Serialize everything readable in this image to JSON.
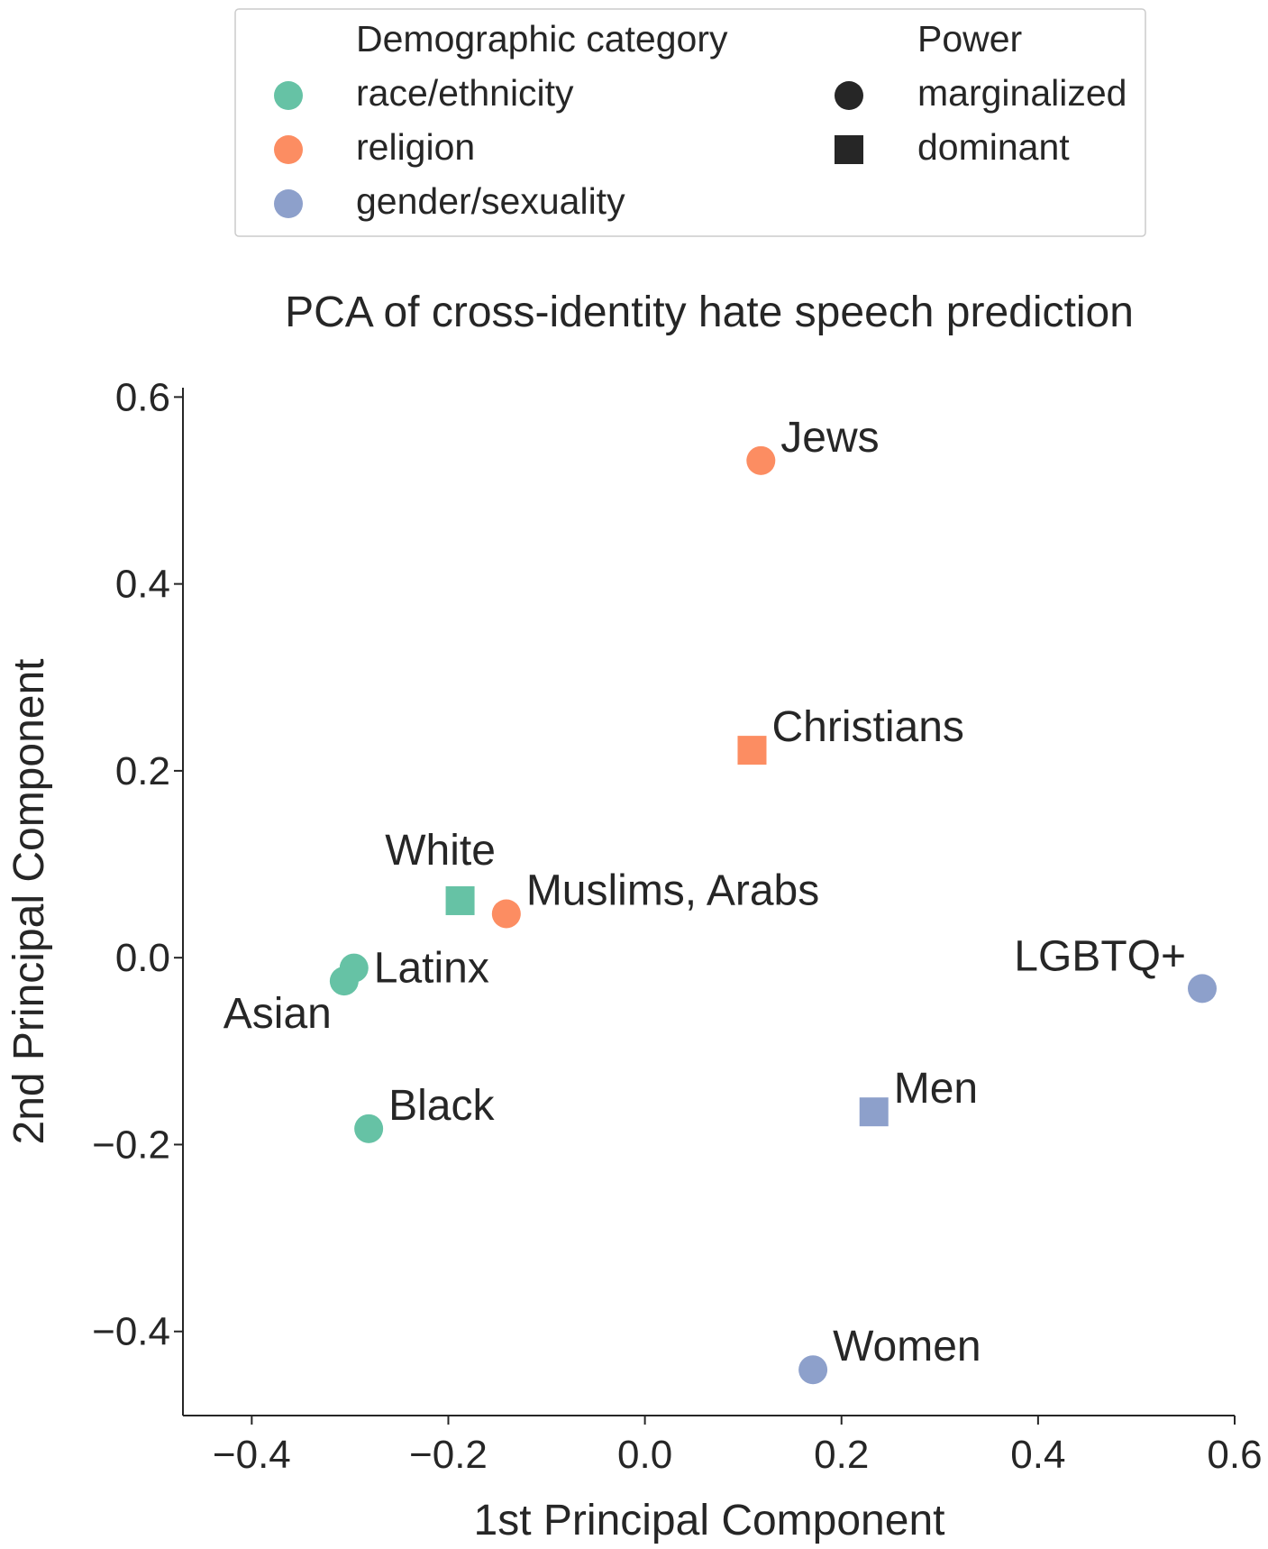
{
  "chart_data": {
    "type": "scatter",
    "title": "PCA of cross-identity hate speech prediction",
    "xlabel": "1st Principal Component",
    "ylabel": "2nd Principal Component",
    "xlim": [
      -0.47,
      0.6
    ],
    "ylim": [
      -0.49,
      0.61
    ],
    "xticks": [
      -0.4,
      -0.2,
      0.0,
      0.2,
      0.4,
      0.6
    ],
    "yticks": [
      -0.4,
      -0.2,
      0.0,
      0.2,
      0.4,
      0.6
    ],
    "xtick_labels": [
      "−0.4",
      "−0.2",
      "0.0",
      "0.2",
      "0.4",
      "0.6"
    ],
    "ytick_labels": [
      "−0.4",
      "−0.2",
      "0.0",
      "0.2",
      "0.4",
      "0.6"
    ],
    "legend": {
      "placement": "top-center",
      "category_title": "Demographic category",
      "categories": [
        {
          "key": "race",
          "label": "race/ethnicity",
          "color": "#66c2a5"
        },
        {
          "key": "religion",
          "label": "religion",
          "color": "#fc8d62"
        },
        {
          "key": "gender",
          "label": "gender/sexuality",
          "color": "#8da0cb"
        }
      ],
      "power_title": "Power",
      "powers": [
        {
          "key": "marginalized",
          "label": "marginalized",
          "marker": "circle",
          "color": "#262626"
        },
        {
          "key": "dominant",
          "label": "dominant",
          "marker": "square",
          "color": "#262626"
        }
      ]
    },
    "points": [
      {
        "label": "Jews",
        "x": 0.118,
        "y": 0.532,
        "category": "religion",
        "power": "marginalized",
        "label_anchor": "upper-right"
      },
      {
        "label": "Christians",
        "x": 0.109,
        "y": 0.222,
        "category": "religion",
        "power": "dominant",
        "label_anchor": "upper-right"
      },
      {
        "label": "Muslims, Arabs",
        "x": -0.141,
        "y": 0.047,
        "category": "religion",
        "power": "marginalized",
        "label_anchor": "upper-right"
      },
      {
        "label": "White",
        "x": -0.188,
        "y": 0.061,
        "category": "race",
        "power": "dominant",
        "label_anchor": "upper-left"
      },
      {
        "label": "Latinx",
        "x": -0.296,
        "y": -0.011,
        "category": "race",
        "power": "marginalized",
        "label_anchor": "right"
      },
      {
        "label": "Asian",
        "x": -0.306,
        "y": -0.025,
        "category": "race",
        "power": "marginalized",
        "label_anchor": "lower-left"
      },
      {
        "label": "Black",
        "x": -0.281,
        "y": -0.183,
        "category": "race",
        "power": "marginalized",
        "label_anchor": "upper-right"
      },
      {
        "label": "LGBTQ+",
        "x": 0.567,
        "y": -0.033,
        "category": "gender",
        "power": "marginalized",
        "label_anchor": "upper-left"
      },
      {
        "label": "Men",
        "x": 0.233,
        "y": -0.165,
        "category": "gender",
        "power": "dominant",
        "label_anchor": "upper-right"
      },
      {
        "label": "Women",
        "x": 0.171,
        "y": -0.441,
        "category": "gender",
        "power": "marginalized",
        "label_anchor": "upper-right"
      }
    ]
  }
}
